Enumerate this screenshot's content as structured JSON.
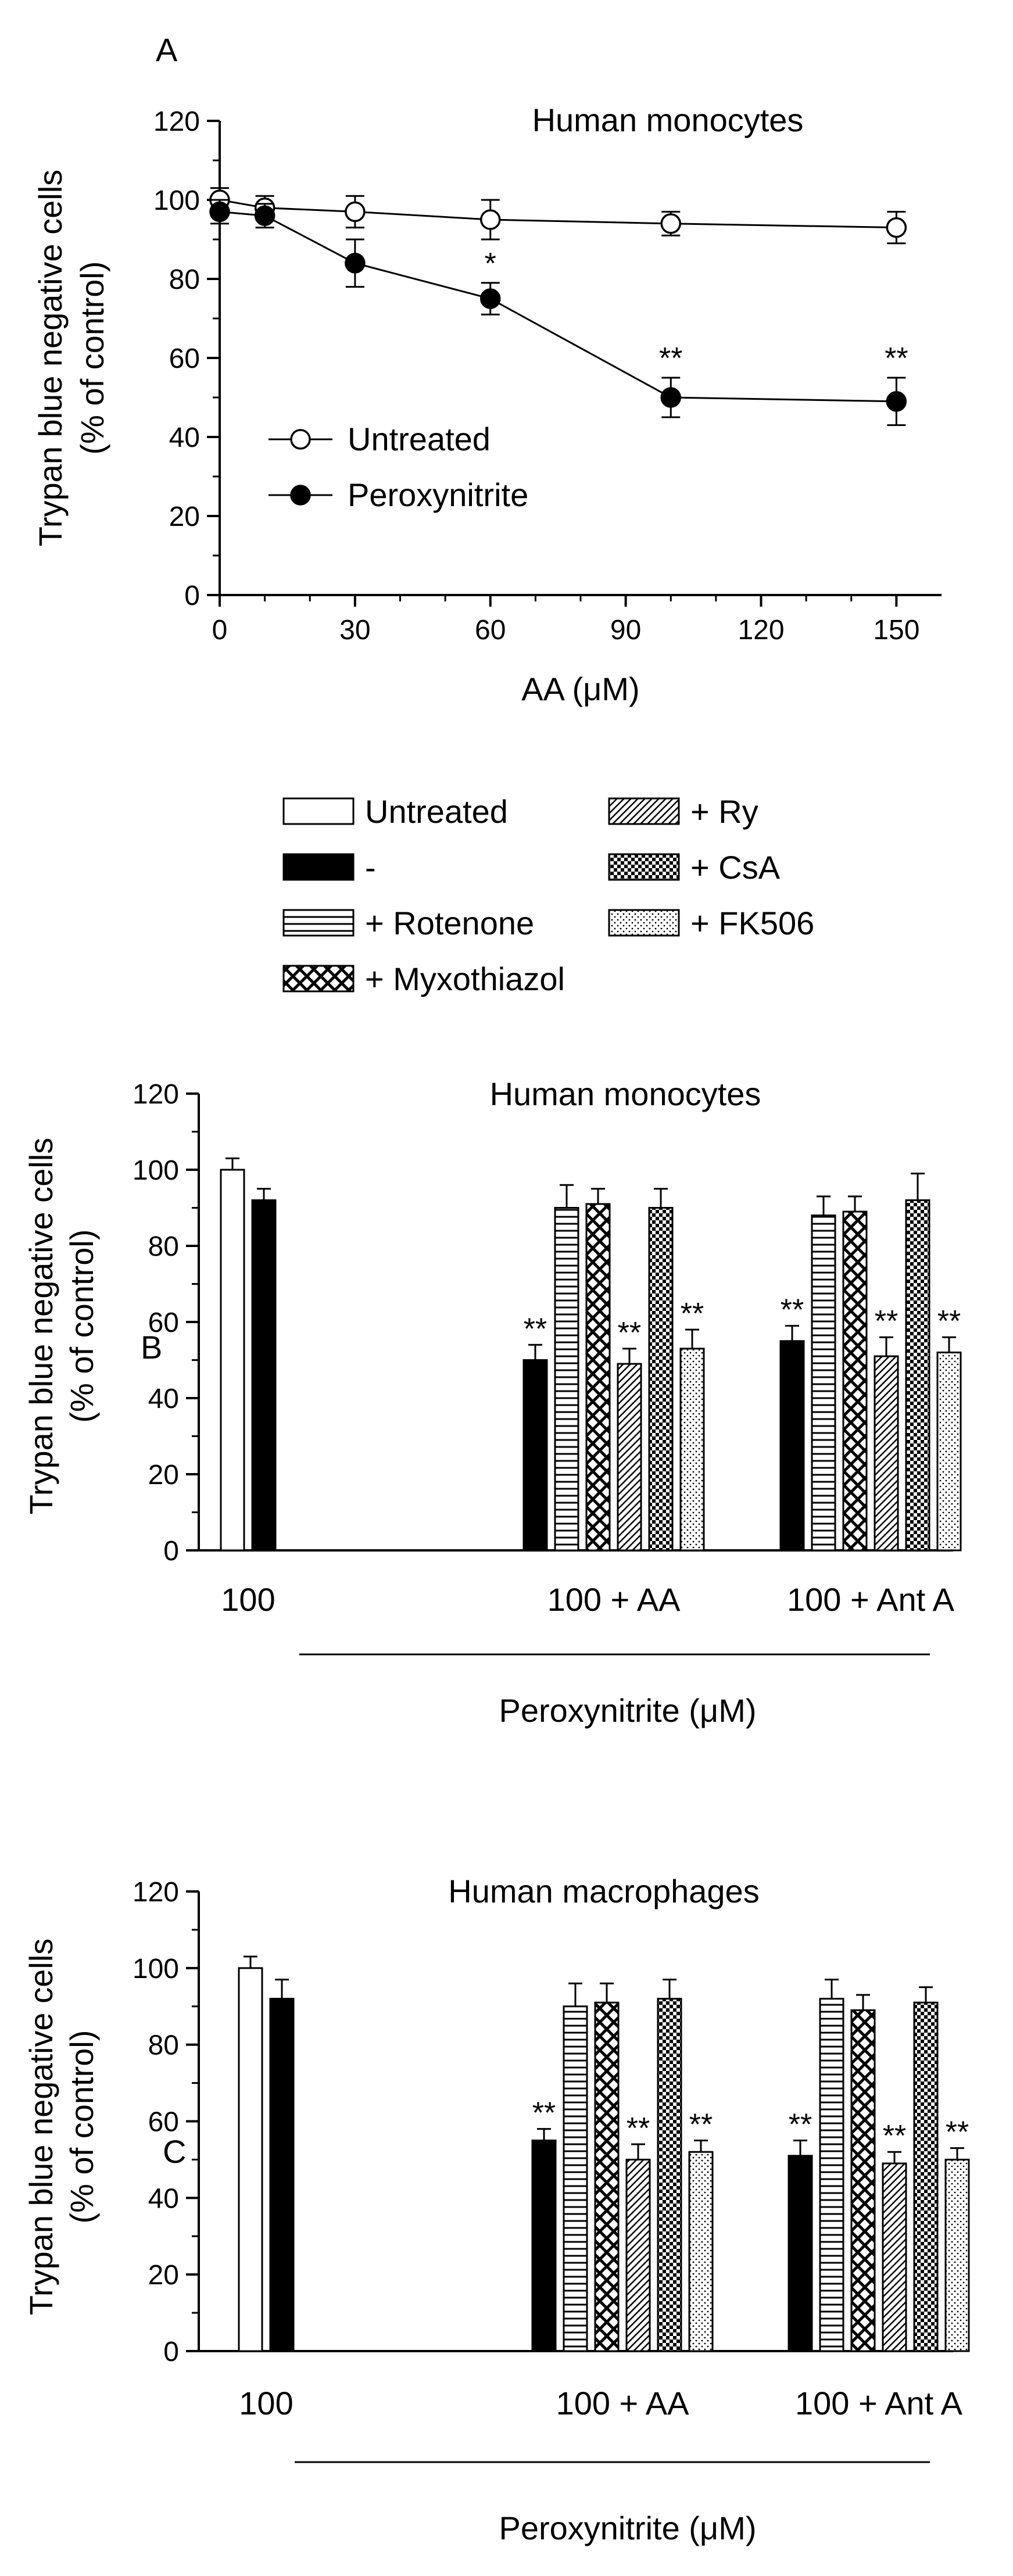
{
  "colors": {
    "ink": "#000000",
    "background": "#ffffff"
  },
  "legend_b": [
    {
      "key": "untreated",
      "label": "Untreated",
      "pattern": "white"
    },
    {
      "key": "none",
      "label": "-",
      "pattern": "black"
    },
    {
      "key": "rotenone",
      "label": "+ Rotenone",
      "pattern": "horizontal-lines"
    },
    {
      "key": "myxothiazol",
      "label": "+ Myxothiazol",
      "pattern": "crosshatch"
    },
    {
      "key": "ry",
      "label": "+ Ry",
      "pattern": "diagonal-lines"
    },
    {
      "key": "csa",
      "label": "+ CsA",
      "pattern": "checkerboard"
    },
    {
      "key": "fk506",
      "label": "+ FK506",
      "pattern": "dots"
    }
  ],
  "chart_data": [
    {
      "panel": "A",
      "type": "line",
      "title": "Human monocytes",
      "xlabel": "AA (μM)",
      "ylabel": "Trypan blue negative cells",
      "ylabel2": "(% of control)",
      "xlim": [
        0,
        160
      ],
      "ylim": [
        0,
        120
      ],
      "xticks": [
        0,
        30,
        60,
        90,
        120,
        150
      ],
      "yticks": [
        0,
        20,
        40,
        60,
        80,
        100,
        120
      ],
      "legend_position": "bottom-left",
      "series": [
        {
          "name": "Untreated",
          "marker": "open-circle",
          "x": [
            0,
            10,
            30,
            60,
            100,
            150
          ],
          "y": [
            100,
            98,
            97,
            95,
            94,
            93
          ],
          "err": [
            3,
            3,
            4,
            5,
            3,
            4
          ],
          "sig": [
            "",
            "",
            "",
            "",
            "",
            ""
          ]
        },
        {
          "name": "Peroxynitrite",
          "marker": "filled-circle",
          "x": [
            0,
            10,
            30,
            60,
            100,
            150
          ],
          "y": [
            97,
            96,
            84,
            75,
            50,
            49
          ],
          "err": [
            3,
            3,
            6,
            4,
            5,
            6
          ],
          "sig": [
            "",
            "",
            "",
            "*",
            "**",
            "**"
          ]
        }
      ]
    },
    {
      "panel": "B",
      "type": "bar",
      "title": "Human monocytes",
      "ylabel": "Trypan blue negative cells",
      "ylabel2": "(% of control)",
      "xlabel": "Peroxynitrite (μM)",
      "ylim": [
        0,
        120
      ],
      "yticks": [
        0,
        20,
        40,
        60,
        80,
        100,
        120
      ],
      "groups": [
        {
          "label": "100",
          "bars": [
            {
              "key": "untreated",
              "value": 100,
              "err": 3,
              "sig": ""
            },
            {
              "key": "none",
              "value": 92,
              "err": 3,
              "sig": ""
            }
          ]
        },
        {
          "label": "100 + AA",
          "bars": [
            {
              "key": "none",
              "value": 50,
              "err": 4,
              "sig": "**"
            },
            {
              "key": "rotenone",
              "value": 90,
              "err": 6,
              "sig": ""
            },
            {
              "key": "myxothiazol",
              "value": 91,
              "err": 4,
              "sig": ""
            },
            {
              "key": "ry",
              "value": 49,
              "err": 4,
              "sig": "**"
            },
            {
              "key": "csa",
              "value": 90,
              "err": 5,
              "sig": ""
            },
            {
              "key": "fk506",
              "value": 53,
              "err": 5,
              "sig": "**"
            }
          ]
        },
        {
          "label": "100 + Ant A",
          "bars": [
            {
              "key": "none",
              "value": 55,
              "err": 4,
              "sig": "**"
            },
            {
              "key": "rotenone",
              "value": 88,
              "err": 5,
              "sig": ""
            },
            {
              "key": "myxothiazol",
              "value": 89,
              "err": 4,
              "sig": ""
            },
            {
              "key": "ry",
              "value": 51,
              "err": 5,
              "sig": "**"
            },
            {
              "key": "csa",
              "value": 92,
              "err": 7,
              "sig": ""
            },
            {
              "key": "fk506",
              "value": 52,
              "err": 4,
              "sig": "**"
            }
          ]
        }
      ]
    },
    {
      "panel": "C",
      "type": "bar",
      "title": "Human macrophages",
      "ylabel": "Trypan blue negative cells",
      "ylabel2": "(% of control)",
      "xlabel": "Peroxynitrite (μM)",
      "ylim": [
        0,
        120
      ],
      "yticks": [
        0,
        20,
        40,
        60,
        80,
        100,
        120
      ],
      "groups": [
        {
          "label": "100",
          "bars": [
            {
              "key": "untreated",
              "value": 100,
              "err": 3,
              "sig": ""
            },
            {
              "key": "none",
              "value": 92,
              "err": 5,
              "sig": ""
            }
          ]
        },
        {
          "label": "100 + AA",
          "bars": [
            {
              "key": "none",
              "value": 55,
              "err": 3,
              "sig": "**"
            },
            {
              "key": "rotenone",
              "value": 90,
              "err": 6,
              "sig": ""
            },
            {
              "key": "myxothiazol",
              "value": 91,
              "err": 5,
              "sig": ""
            },
            {
              "key": "ry",
              "value": 50,
              "err": 4,
              "sig": "**"
            },
            {
              "key": "csa",
              "value": 92,
              "err": 5,
              "sig": ""
            },
            {
              "key": "fk506",
              "value": 52,
              "err": 3,
              "sig": "**"
            }
          ]
        },
        {
          "label": "100 + Ant A",
          "bars": [
            {
              "key": "none",
              "value": 51,
              "err": 4,
              "sig": "**"
            },
            {
              "key": "rotenone",
              "value": 92,
              "err": 5,
              "sig": ""
            },
            {
              "key": "myxothiazol",
              "value": 89,
              "err": 4,
              "sig": ""
            },
            {
              "key": "ry",
              "value": 49,
              "err": 3,
              "sig": "**"
            },
            {
              "key": "csa",
              "value": 91,
              "err": 4,
              "sig": ""
            },
            {
              "key": "fk506",
              "value": 50,
              "err": 3,
              "sig": "**"
            }
          ]
        }
      ]
    }
  ]
}
